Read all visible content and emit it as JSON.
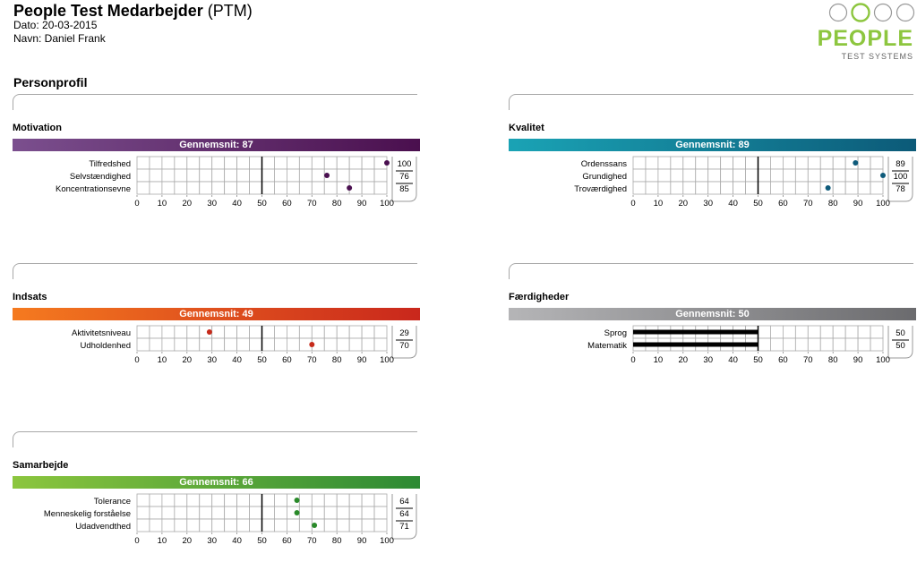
{
  "header": {
    "title": "People Test Medarbejder",
    "subtitle": "(PTM)",
    "date_line": "Dato: 20-03-2015",
    "name_line": "Navn: Daniel Frank"
  },
  "logo": {
    "word": "PEOPLE",
    "sub": "TEST SYSTEMS",
    "color": "#8dc63f"
  },
  "section_title": "Personprofil",
  "chart_data": [
    {
      "type": "scatter",
      "title": "Motivation",
      "average_label": "Gennemsnit: 87",
      "gradient": [
        "#7b4f8e",
        "#4a0f4e"
      ],
      "dot_color": "#4a1050",
      "xlim": [
        0,
        100
      ],
      "xticks": [
        0,
        10,
        20,
        30,
        40,
        50,
        60,
        70,
        80,
        90,
        100
      ],
      "rows": [
        {
          "label": "Tilfredshed",
          "value": 100
        },
        {
          "label": "Selvstændighed",
          "value": 76
        },
        {
          "label": "Koncentrationsevne",
          "value": 85
        }
      ]
    },
    {
      "type": "scatter",
      "title": "Kvalitet",
      "average_label": "Gennemsnit: 89",
      "gradient": [
        "#1aa3b5",
        "#0c5a78"
      ],
      "dot_color": "#0e5a7a",
      "xlim": [
        0,
        100
      ],
      "xticks": [
        0,
        10,
        20,
        30,
        40,
        50,
        60,
        70,
        80,
        90,
        100
      ],
      "rows": [
        {
          "label": "Ordenssans",
          "value": 89
        },
        {
          "label": "Grundighed",
          "value": 100
        },
        {
          "label": "Troværdighed",
          "value": 78
        }
      ]
    },
    {
      "type": "scatter",
      "title": "Indsats",
      "average_label": "Gennemsnit: 49",
      "gradient": [
        "#f57a1f",
        "#c9271c"
      ],
      "dot_color": "#c62a1a",
      "xlim": [
        0,
        100
      ],
      "xticks": [
        0,
        10,
        20,
        30,
        40,
        50,
        60,
        70,
        80,
        90,
        100
      ],
      "rows": [
        {
          "label": "Aktivitetsniveau",
          "value": 29
        },
        {
          "label": "Udholdenhed",
          "value": 70
        }
      ]
    },
    {
      "type": "bar",
      "title": "Færdigheder",
      "average_label": "Gennemsnit: 50",
      "gradient": [
        "#b5b5b7",
        "#6b6b6e"
      ],
      "dot_color": "#000000",
      "xlim": [
        0,
        100
      ],
      "xticks": [
        0,
        10,
        20,
        30,
        40,
        50,
        60,
        70,
        80,
        90,
        100
      ],
      "rows": [
        {
          "label": "Sprog",
          "value": 50
        },
        {
          "label": "Matematik",
          "value": 50
        }
      ]
    },
    {
      "type": "scatter",
      "title": "Samarbejde",
      "average_label": "Gennemsnit: 66",
      "gradient": [
        "#8cc63e",
        "#2d8a34"
      ],
      "dot_color": "#2a8a2a",
      "xlim": [
        0,
        100
      ],
      "xticks": [
        0,
        10,
        20,
        30,
        40,
        50,
        60,
        70,
        80,
        90,
        100
      ],
      "rows": [
        {
          "label": "Tolerance",
          "value": 64
        },
        {
          "label": "Menneskelig forståelse",
          "value": 64
        },
        {
          "label": "Udadvendthed",
          "value": 71
        }
      ]
    }
  ]
}
